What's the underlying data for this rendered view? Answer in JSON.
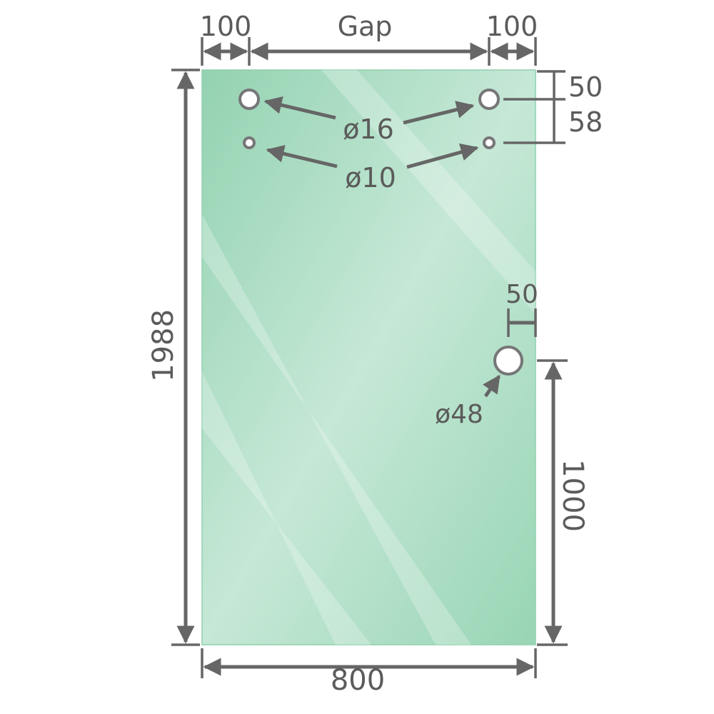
{
  "diagram": {
    "colors": {
      "glass": "#97d4b4",
      "glass_highlight": "#cbeadb",
      "line": "#666666",
      "text": "#5b5b5b"
    },
    "labels": {
      "left_offset": "100",
      "gap": "Gap",
      "right_offset": "100",
      "top_to_hole": "50",
      "hole_spacing": "58",
      "height": "1988",
      "width": "800",
      "handle_edge": "50",
      "handle_height": "1000",
      "large_hole": "ø16",
      "small_hole": "ø10",
      "handle_hole": "ø48"
    }
  }
}
